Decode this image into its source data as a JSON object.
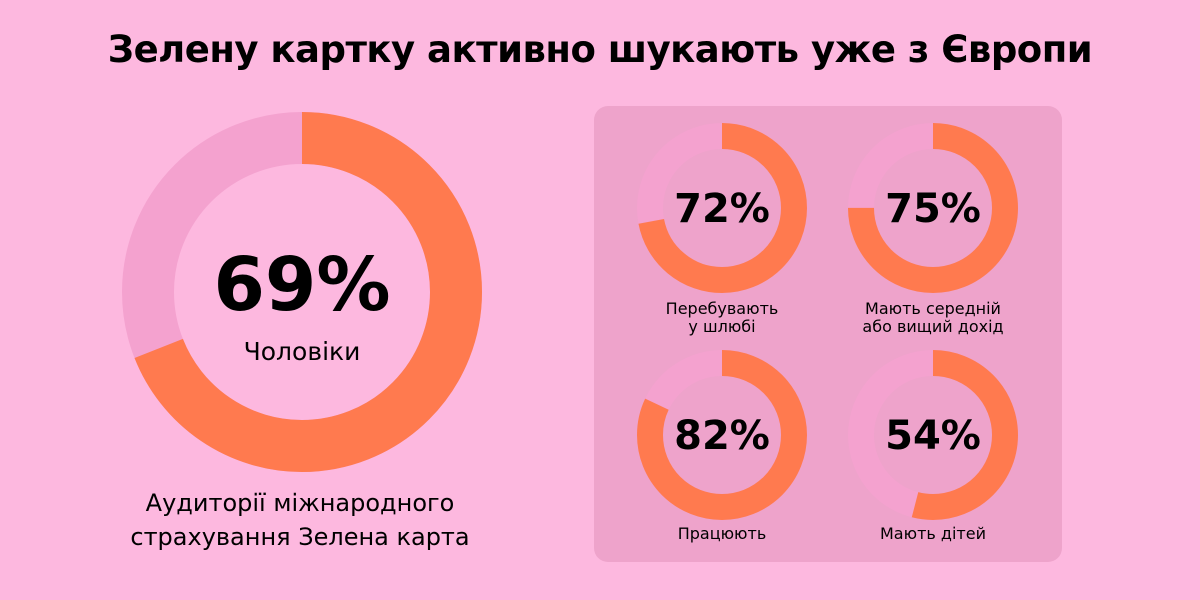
{
  "title": "Зелену картку активно шукають уже з Європи",
  "colors": {
    "background": "#FDB8DF",
    "panel": "#EEA3CB",
    "accent": "#FF7A4F",
    "track": "#F4A2CF",
    "inner": "#FDB8DF"
  },
  "chart_data": [
    {
      "type": "pie",
      "value": 69,
      "value_label": "69%",
      "label": "Чоловіки",
      "caption_lines": [
        "Аудиторії міжнародного",
        "страхування Зелена карта"
      ]
    },
    {
      "type": "pie",
      "value": 72,
      "value_label": "72%",
      "label_lines": [
        "Перебувають",
        "у шлюбі"
      ]
    },
    {
      "type": "pie",
      "value": 75,
      "value_label": "75%",
      "label_lines": [
        "Мають середній",
        "або вищий дохід"
      ]
    },
    {
      "type": "pie",
      "value": 82,
      "value_label": "82%",
      "label_lines": [
        "Працюють"
      ]
    },
    {
      "type": "pie",
      "value": 54,
      "value_label": "54%",
      "label_lines": [
        "Мають дітей"
      ]
    }
  ]
}
